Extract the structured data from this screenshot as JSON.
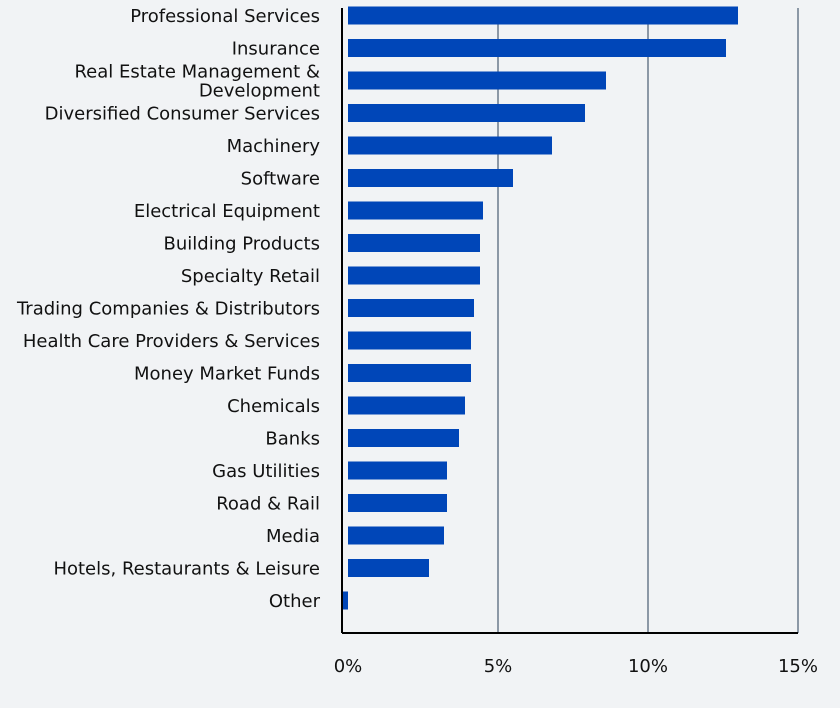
{
  "chart_data": {
    "type": "bar",
    "orientation": "horizontal",
    "categories": [
      "Professional Services",
      "Insurance",
      "Real Estate Management & Development",
      "Diversified Consumer Services",
      "Machinery",
      "Software",
      "Electrical Equipment",
      "Building Products",
      "Specialty Retail",
      "Trading Companies & Distributors",
      "Health Care Providers & Services",
      "Money Market Funds",
      "Chemicals",
      "Banks",
      "Gas Utilities",
      "Road & Rail",
      "Media",
      "Hotels, Restaurants & Leisure",
      "Other"
    ],
    "values": [
      13.0,
      12.6,
      8.6,
      7.9,
      6.8,
      5.5,
      4.5,
      4.4,
      4.4,
      4.2,
      4.1,
      4.1,
      3.9,
      3.7,
      3.3,
      3.3,
      3.2,
      2.7,
      -0.2
    ],
    "xlim": [
      0,
      15
    ],
    "xticks": [
      0,
      5,
      10,
      15
    ],
    "xtick_labels": [
      "0%",
      "5%",
      "10%",
      "15%"
    ],
    "grid": "vertical",
    "bar_color": "#0046b8",
    "grid_color": "#6b7a8c",
    "axis_color": "#000000",
    "background": "#f1f3f5"
  }
}
